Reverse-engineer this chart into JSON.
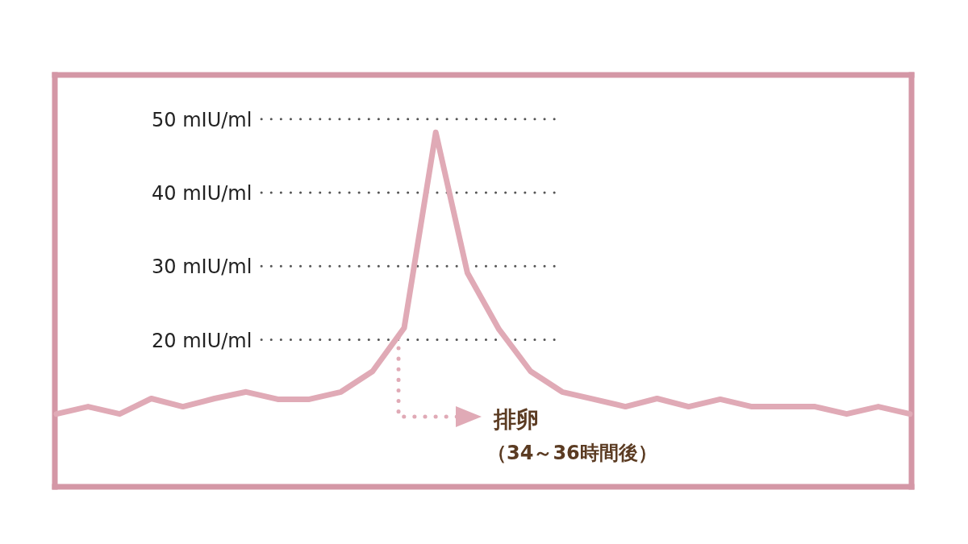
{
  "chart_data": {
    "type": "line",
    "categories": [
      null,
      null,
      null,
      null,
      null,
      null,
      null,
      null,
      null,
      null,
      null,
      null,
      null,
      null,
      null,
      null,
      null,
      null,
      null,
      null,
      null,
      null,
      null,
      null,
      null,
      null,
      null,
      null
    ],
    "series": [
      {
        "color": "#e0aab6",
        "values": [
          9.9,
          10.9,
          9.9,
          12.0,
          10.9,
          12.0,
          12.9,
          11.9,
          11.9,
          12.9,
          15.7,
          21.6,
          48.2,
          29.1,
          21.4,
          15.7,
          12.9,
          11.9,
          10.9,
          12.0,
          10.9,
          11.9,
          10.9,
          10.9,
          10.9,
          9.9,
          10.9,
          9.9
        ]
      }
    ],
    "ylim": [
      0,
      56
    ],
    "yticks": [
      {
        "value": 20,
        "label": "20 mIU/ml"
      },
      {
        "value": 30,
        "label": "30 mIU/ml"
      },
      {
        "value": 40,
        "label": "40 mIU/ml"
      },
      {
        "value": 50,
        "label": "50 mIU/ml"
      }
    ],
    "grid": "y",
    "tick_labels": "y",
    "marker": "none",
    "line_style": "solid",
    "annotations": [
      "排卵",
      "（34～36時間後）"
    ]
  }
}
